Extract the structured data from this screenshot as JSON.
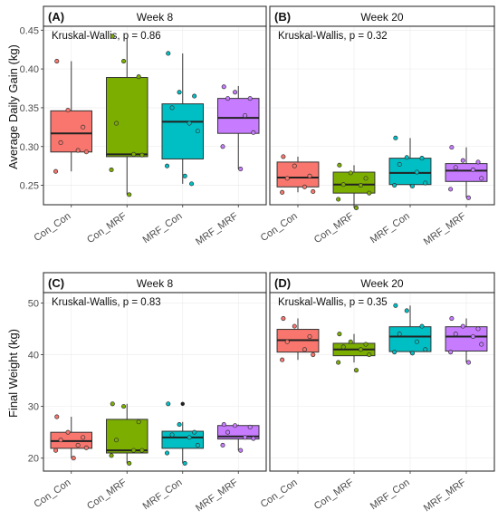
{
  "colors": {
    "Con_Con": "#f8766d",
    "Con_MRF": "#7cae00",
    "MRF_Con": "#00bfc4",
    "MRF_MRF": "#c77cff"
  },
  "row_labels": [
    "Average Daily Gain (kg)",
    "Final Weight (kg)"
  ],
  "chart_data": [
    {
      "type": "box",
      "tag": "(A)",
      "strip": "Week 8",
      "annotation": "Kruskal-Wallis, p = 0.86",
      "ylabel": "Average Daily Gain (kg)",
      "yticks": [
        0.25,
        0.3,
        0.35,
        0.4,
        0.45
      ],
      "ylim": [
        0.225,
        0.455
      ],
      "categories": [
        "Con_Con",
        "Con_MRF",
        "MRF_Con",
        "MRF_MRF"
      ],
      "boxes": [
        {
          "q1": 0.293,
          "median": 0.317,
          "q3": 0.346,
          "whisker_low": 0.268,
          "whisker_high": 0.41,
          "points": [
            0.41,
            0.347,
            0.325,
            0.305,
            0.295,
            0.293,
            0.268
          ]
        },
        {
          "q1": 0.287,
          "median": 0.29,
          "q3": 0.389,
          "whisker_low": 0.238,
          "whisker_high": 0.44,
          "points": [
            0.442,
            0.41,
            0.39,
            0.33,
            0.29,
            0.289,
            0.27,
            0.238
          ]
        },
        {
          "q1": 0.284,
          "median": 0.332,
          "q3": 0.355,
          "whisker_low": 0.252,
          "whisker_high": 0.42,
          "points": [
            0.42,
            0.37,
            0.365,
            0.35,
            0.33,
            0.32,
            0.275,
            0.262,
            0.252
          ]
        },
        {
          "q1": 0.317,
          "median": 0.337,
          "q3": 0.362,
          "whisker_low": 0.271,
          "whisker_high": 0.378,
          "points": [
            0.377,
            0.37,
            0.362,
            0.362,
            0.34,
            0.318,
            0.3,
            0.271
          ]
        }
      ]
    },
    {
      "type": "box",
      "tag": "(B)",
      "strip": "Week 20",
      "annotation": "Kruskal-Wallis, p = 0.32",
      "ylabel": "",
      "yticks": [
        0.25,
        0.3,
        0.35,
        0.4,
        0.45
      ],
      "ylim": [
        0.225,
        0.455
      ],
      "categories": [
        "Con_Con",
        "Con_MRF",
        "MRF_Con",
        "MRF_MRF"
      ],
      "boxes": [
        {
          "q1": 0.248,
          "median": 0.26,
          "q3": 0.28,
          "whisker_low": 0.241,
          "whisker_high": 0.287,
          "points": [
            0.287,
            0.275,
            0.262,
            0.259,
            0.248,
            0.242,
            0.241
          ]
        },
        {
          "q1": 0.24,
          "median": 0.251,
          "q3": 0.267,
          "whisker_low": 0.221,
          "whisker_high": 0.276,
          "points": [
            0.276,
            0.266,
            0.259,
            0.251,
            0.25,
            0.24,
            0.232,
            0.221
          ]
        },
        {
          "q1": 0.251,
          "median": 0.266,
          "q3": 0.285,
          "whisker_low": 0.249,
          "whisker_high": 0.311,
          "points": [
            0.311,
            0.286,
            0.285,
            0.277,
            0.267,
            0.253,
            0.25,
            0.249
          ]
        },
        {
          "q1": 0.255,
          "median": 0.269,
          "q3": 0.278,
          "whisker_low": 0.234,
          "whisker_high": 0.299,
          "points": [
            0.299,
            0.282,
            0.28,
            0.273,
            0.27,
            0.259,
            0.245,
            0.234
          ]
        }
      ]
    },
    {
      "type": "box",
      "tag": "(C)",
      "strip": "Week 8",
      "annotation": "Kruskal-Wallis, p = 0.83",
      "ylabel": "Final Weight (kg)",
      "yticks": [
        20,
        30,
        40,
        50
      ],
      "ylim": [
        17.5,
        52
      ],
      "categories": [
        "Con_Con",
        "Con_MRF",
        "MRF_Con",
        "MRF_MRF"
      ],
      "boxes": [
        {
          "q1": 21.9,
          "median": 23.3,
          "q3": 25.0,
          "whisker_low": 20.0,
          "whisker_high": 28.0,
          "points": [
            28.0,
            25.0,
            24.0,
            23.5,
            22.5,
            22.0,
            21.5,
            20.0
          ]
        },
        {
          "q1": 21.0,
          "median": 21.5,
          "q3": 27.5,
          "whisker_low": 19.0,
          "whisker_high": 30.5,
          "points": [
            30.5,
            30.0,
            27.0,
            23.5,
            21.5,
            21.5,
            20.5,
            19.0
          ]
        },
        {
          "q1": 21.9,
          "median": 24.0,
          "q3": 25.2,
          "whisker_low": 19.0,
          "whisker_high": 27.0,
          "outliers": [
            30.5
          ],
          "points": [
            30.5,
            26.5,
            25.0,
            24.5,
            24.0,
            22.5,
            21.0,
            19.0
          ]
        },
        {
          "q1": 23.7,
          "median": 24.2,
          "q3": 26.3,
          "whisker_low": 21.5,
          "whisker_high": 26.5,
          "points": [
            26.5,
            26.3,
            26.0,
            25.0,
            24.0,
            23.8,
            22.5,
            21.5
          ]
        }
      ]
    },
    {
      "type": "box",
      "tag": "(D)",
      "strip": "Week 20",
      "annotation": "Kruskal-Wallis, p = 0.35",
      "ylabel": "",
      "yticks": [
        20,
        30,
        40,
        50
      ],
      "ylim": [
        17.5,
        52
      ],
      "categories": [
        "Con_Con",
        "Con_MRF",
        "MRF_Con",
        "MRF_MRF"
      ],
      "boxes": [
        {
          "q1": 40.5,
          "median": 42.8,
          "q3": 44.9,
          "whisker_low": 39.0,
          "whisker_high": 47.0,
          "points": [
            47.0,
            45.5,
            43.5,
            42.5,
            41.0,
            40.0,
            39.0
          ]
        },
        {
          "q1": 39.8,
          "median": 41.0,
          "q3": 42.2,
          "whisker_low": 38.5,
          "whisker_high": 44.0,
          "points": [
            44.0,
            42.5,
            42.0,
            41.5,
            41.0,
            40.0,
            38.5,
            37.0
          ]
        },
        {
          "q1": 40.6,
          "median": 43.5,
          "q3": 45.4,
          "whisker_low": 40.3,
          "whisker_high": 49.5,
          "points": [
            49.5,
            48.5,
            45.5,
            44.0,
            42.5,
            41.0,
            40.5,
            40.3
          ]
        },
        {
          "q1": 40.7,
          "median": 43.5,
          "q3": 45.4,
          "whisker_low": 38.5,
          "whisker_high": 47.0,
          "points": [
            47.0,
            45.5,
            45.0,
            44.0,
            43.5,
            42.0,
            40.5,
            38.5
          ]
        }
      ]
    }
  ]
}
